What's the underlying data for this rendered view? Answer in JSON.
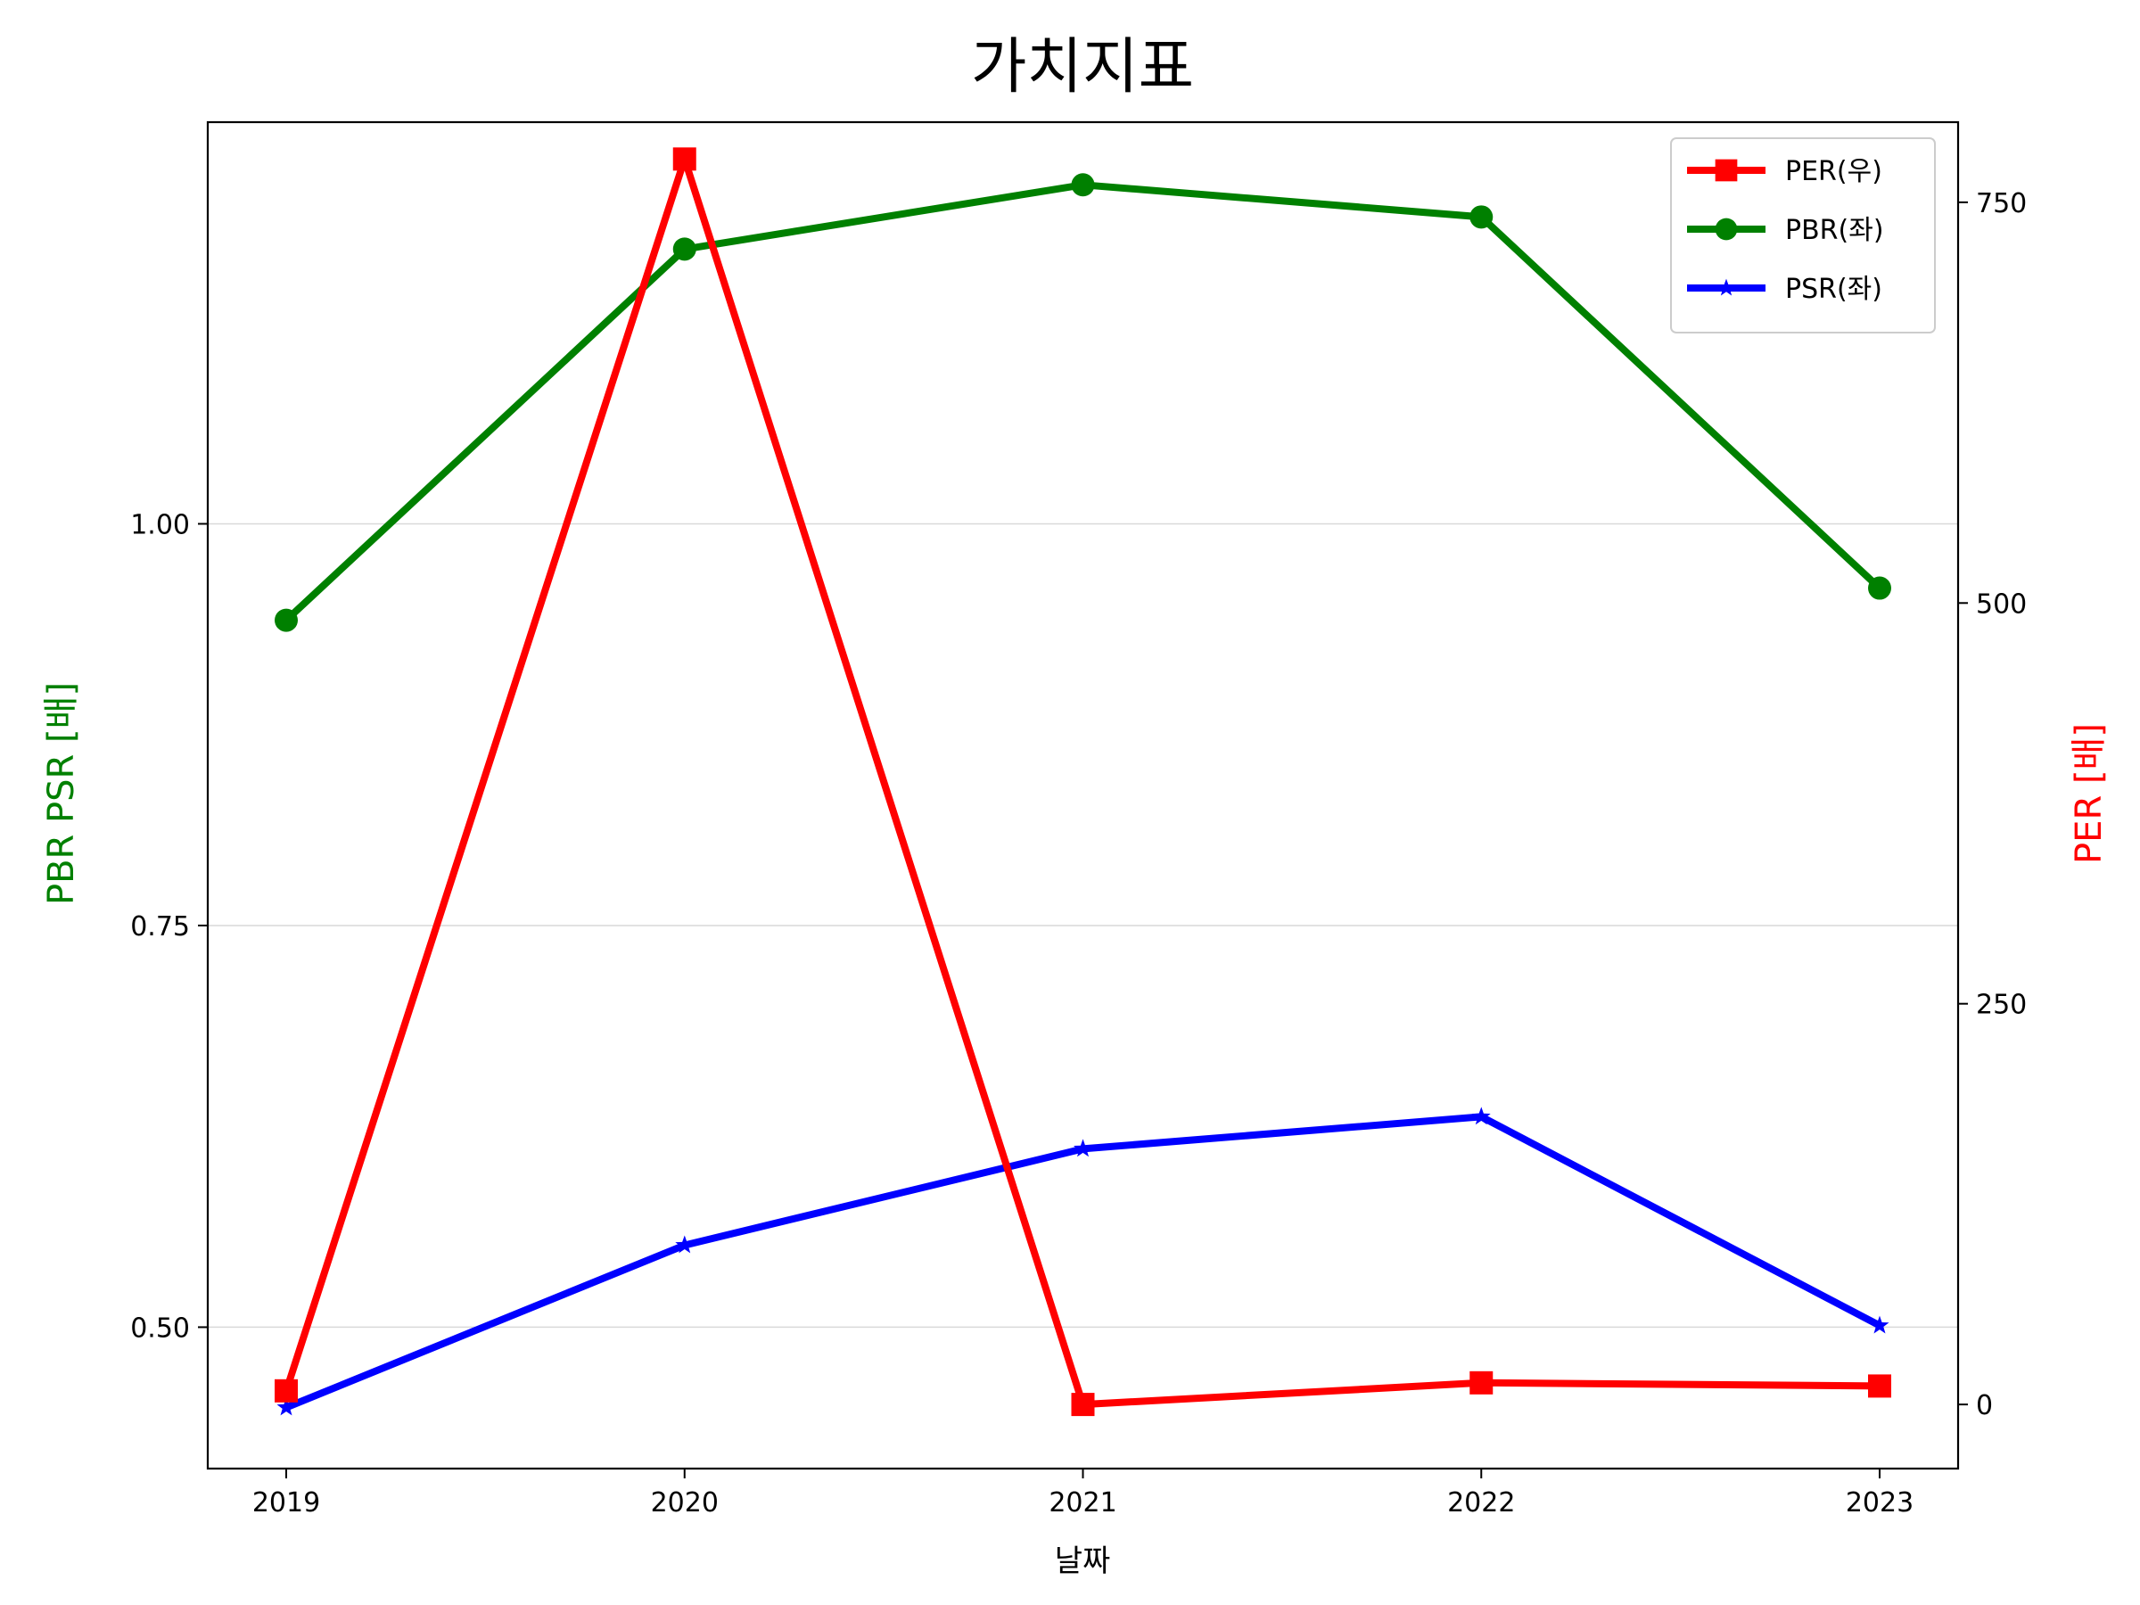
{
  "chart_data": {
    "type": "line",
    "title": "가치지표",
    "xlabel": "날짜",
    "ylabel_left": "PBR PSR [배]",
    "ylabel_right": "PER [배]",
    "ylabel_left_color": "#008000",
    "ylabel_right_color": "#ff0000",
    "categories": [
      "2019",
      "2020",
      "2021",
      "2022",
      "2023"
    ],
    "ylim_left": [
      0.412,
      1.25
    ],
    "ylim_right": [
      -40,
      800
    ],
    "yticks_left": [
      "0.50",
      "0.75",
      "1.00"
    ],
    "yticks_left_values": [
      0.5,
      0.75,
      1.0
    ],
    "yticks_right": [
      "0",
      "250",
      "500",
      "750"
    ],
    "yticks_right_values": [
      0,
      250,
      500,
      750
    ],
    "grid": "horizontal",
    "legend_position": "top-right",
    "series": [
      {
        "name": "PER(우)",
        "axis": "right",
        "color": "#ff0000",
        "marker": "square",
        "values": [
          8.5,
          777,
          0,
          13.5,
          11.5
        ]
      },
      {
        "name": "PBR(좌)",
        "axis": "left",
        "color": "#008000",
        "marker": "circle",
        "values": [
          0.94,
          1.171,
          1.211,
          1.191,
          0.96
        ]
      },
      {
        "name": "PSR(좌)",
        "axis": "left",
        "color": "#0000ff",
        "marker": "star",
        "values": [
          0.45,
          0.551,
          0.611,
          0.631,
          0.501
        ]
      }
    ]
  }
}
